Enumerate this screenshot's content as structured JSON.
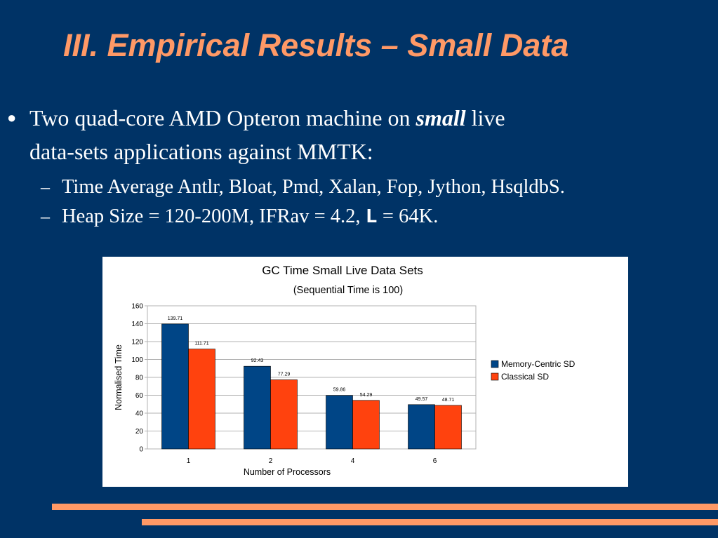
{
  "slide": {
    "title": "III. Empirical Results – Small Data",
    "bullet1": {
      "prefix": "Two quad-core AMD Opteron machine on ",
      "emphasis": "small",
      "suffix_line1": " live",
      "line2": "data-sets applications against MMTK:"
    },
    "sub1": "Time Average Antlr, Bloat, Pmd, Xalan, Fop, Jython, HsqldbS.",
    "sub2": {
      "prefix": "Heap Size = 120-200M, IFRav = 4.2, ",
      "mono": "L",
      "suffix": " = 64K."
    },
    "dash": "–",
    "bullet_symbol": "●"
  },
  "chart_data": {
    "type": "bar",
    "title": "GC Time Small Live Data Sets",
    "subtitle": "(Sequential Time is 100)",
    "xlabel": "Number of Processors",
    "ylabel": "Normalised Time",
    "categories": [
      "1",
      "2",
      "4",
      "6"
    ],
    "series": [
      {
        "name": "Memory-Centric SD",
        "color": "#004586",
        "values": [
          139.71,
          92.43,
          59.86,
          49.57
        ]
      },
      {
        "name": "Classical SD",
        "color": "#ff420e",
        "values": [
          111.71,
          77.29,
          54.29,
          48.71
        ]
      }
    ],
    "ylim": [
      0,
      160
    ],
    "yticks": [
      0,
      20,
      40,
      60,
      80,
      100,
      120,
      140,
      160
    ],
    "grid": true,
    "legend": "right",
    "data_labels": true
  },
  "colors": {
    "background": "#003366",
    "accent": "#ff9966",
    "text": "#ffffff"
  }
}
